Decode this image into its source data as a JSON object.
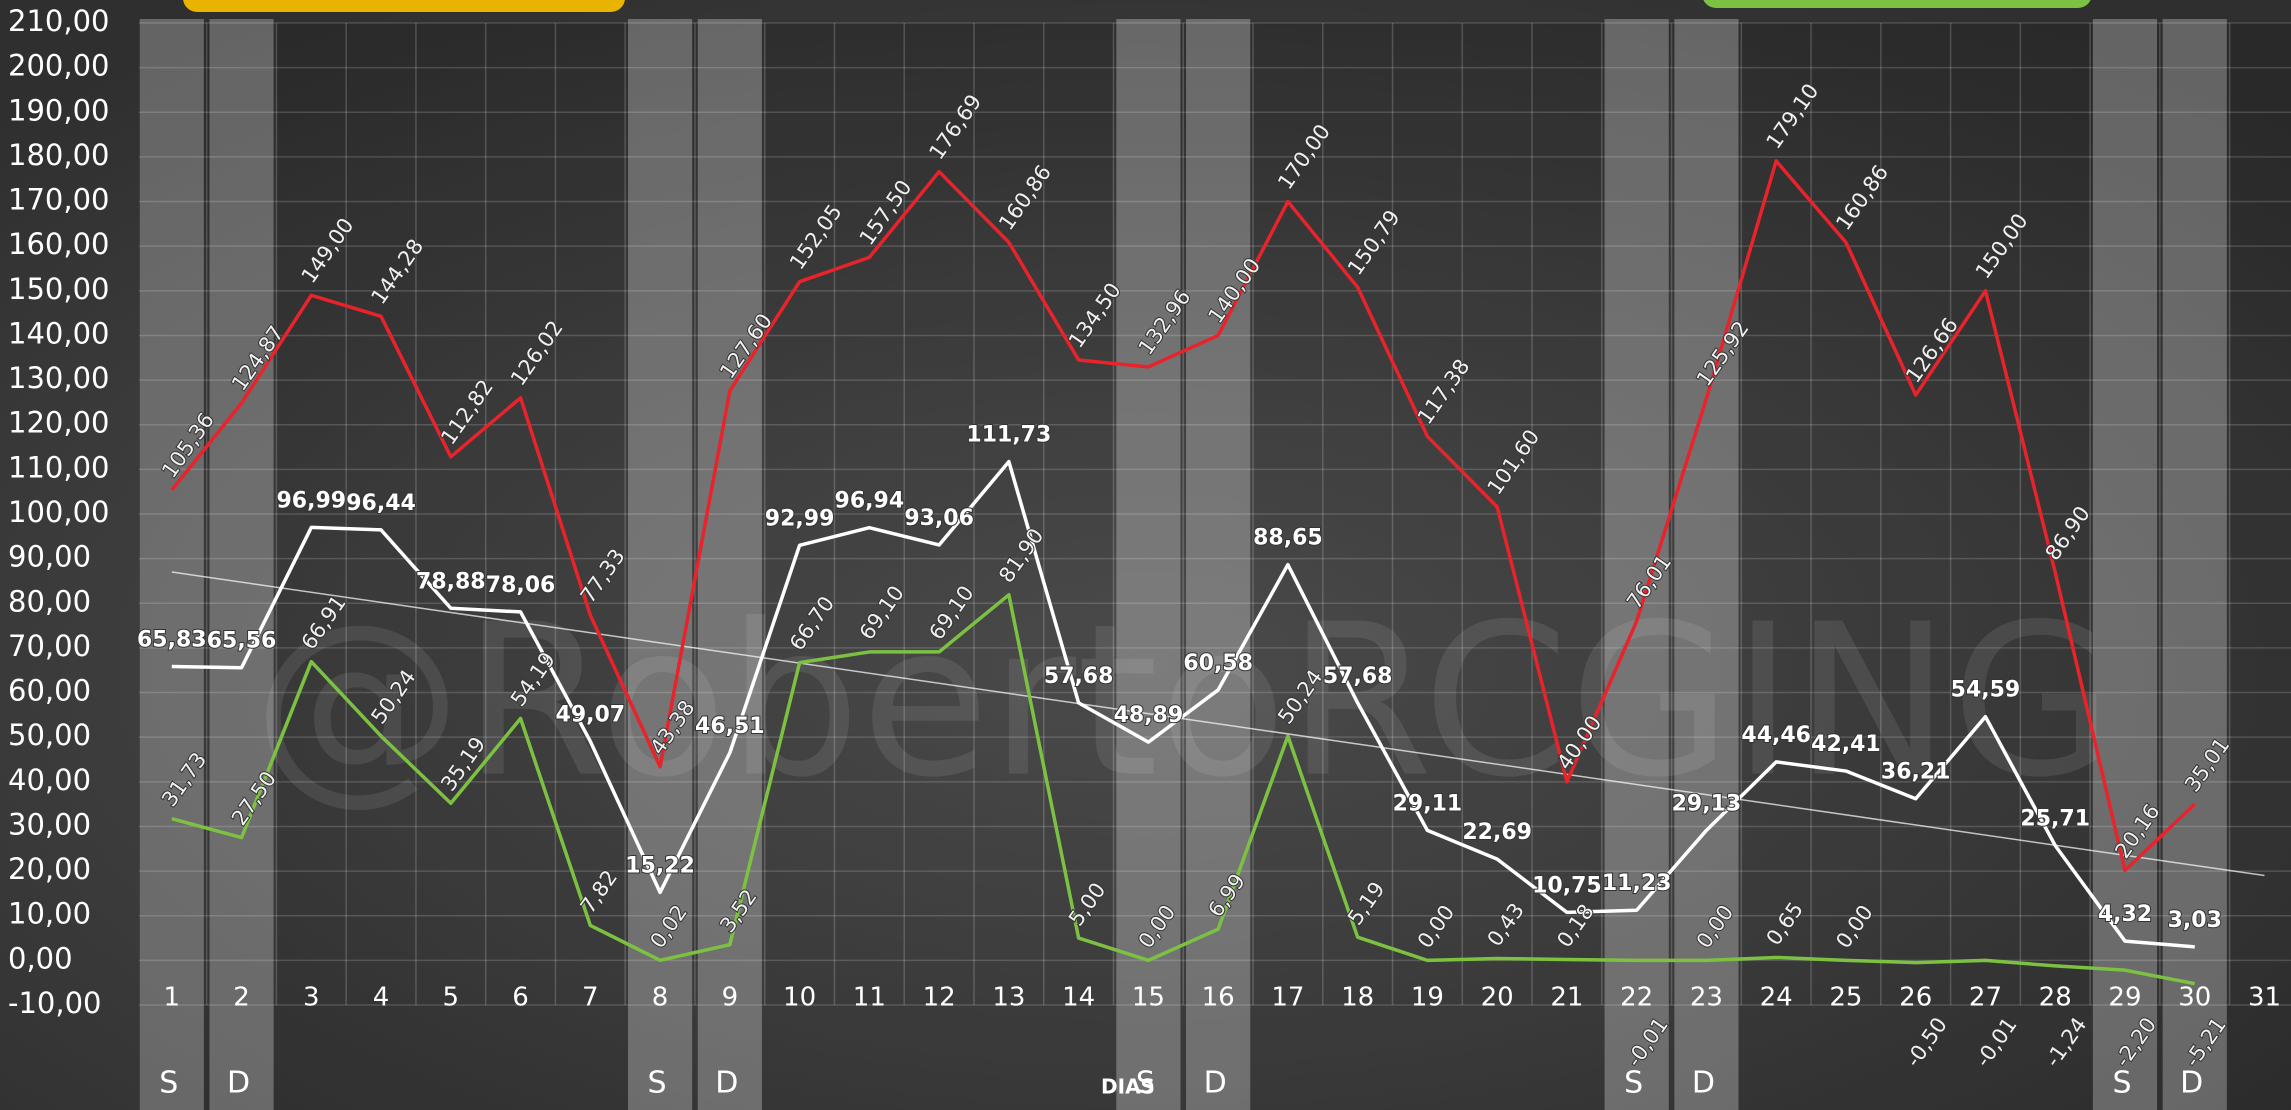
{
  "chart_data": {
    "type": "line",
    "watermark": "@RobertoRCGING",
    "xlabel": "DIAS",
    "x": [
      1,
      2,
      3,
      4,
      5,
      6,
      7,
      8,
      9,
      10,
      11,
      12,
      13,
      14,
      15,
      16,
      17,
      18,
      19,
      20,
      21,
      22,
      23,
      24,
      25,
      26,
      27,
      28,
      29,
      30,
      31
    ],
    "xlim": [
      0.53,
      31.38
    ],
    "ylim": [
      -10,
      210
    ],
    "yticks": [
      {
        "value": -10,
        "label": "-10,00"
      },
      {
        "value": 0,
        "label": "0,00"
      },
      {
        "value": 10,
        "label": "10,00"
      },
      {
        "value": 20,
        "label": "20,00"
      },
      {
        "value": 30,
        "label": "30,00"
      },
      {
        "value": 40,
        "label": "40,00"
      },
      {
        "value": 50,
        "label": "50,00"
      },
      {
        "value": 60,
        "label": "60,00"
      },
      {
        "value": 70,
        "label": "70,00"
      },
      {
        "value": 80,
        "label": "80,00"
      },
      {
        "value": 90,
        "label": "90,00"
      },
      {
        "value": 100,
        "label": "100,00"
      },
      {
        "value": 110,
        "label": "110,00"
      },
      {
        "value": 120,
        "label": "120,00"
      },
      {
        "value": 130,
        "label": "130,00"
      },
      {
        "value": 140,
        "label": "140,00"
      },
      {
        "value": 150,
        "label": "150,00"
      },
      {
        "value": 160,
        "label": "160,00"
      },
      {
        "value": 170,
        "label": "170,00"
      },
      {
        "value": 180,
        "label": "180,00"
      },
      {
        "value": 190,
        "label": "190,00"
      },
      {
        "value": 200,
        "label": "200,00"
      },
      {
        "value": 210,
        "label": "210,00"
      }
    ],
    "grid": true,
    "weekends": [
      {
        "day": 1,
        "label": "S"
      },
      {
        "day": 2,
        "label": "D"
      },
      {
        "day": 8,
        "label": "S"
      },
      {
        "day": 9,
        "label": "D"
      },
      {
        "day": 15,
        "label": "S"
      },
      {
        "day": 16,
        "label": "D"
      },
      {
        "day": 22,
        "label": "S"
      },
      {
        "day": 23,
        "label": "D"
      },
      {
        "day": 29,
        "label": "S"
      },
      {
        "day": 30,
        "label": "D"
      }
    ],
    "series": [
      {
        "color": "#e8232b",
        "label_style": "rotated",
        "values": [
          105.36,
          124.87,
          149.0,
          144.28,
          112.82,
          126.02,
          77.33,
          43.38,
          127.6,
          152.05,
          157.5,
          176.69,
          160.86,
          134.5,
          132.96,
          140.0,
          170.0,
          150.79,
          117.38,
          101.6,
          40.0,
          76.01,
          125.92,
          179.1,
          160.86,
          126.66,
          150.0,
          86.9,
          20.16,
          35.01,
          null
        ],
        "value_labels": [
          "105,36",
          "124,87",
          "149,00",
          "144,28",
          "112,82",
          "126,02",
          "77,33",
          "43,38",
          "127,60",
          "152,05",
          "157,50",
          "176,69",
          "160,86",
          "134,50",
          "132,96",
          "140,00",
          "170,00",
          "150,79",
          "117,38",
          "101,60",
          "40,00",
          "76,01",
          "125,92",
          "179,10",
          "160,86",
          "126,66",
          "150,00",
          "86,90",
          "20,16",
          "35,01",
          null
        ]
      },
      {
        "color": "#ffffff",
        "label_style": "bold",
        "values": [
          65.83,
          65.56,
          96.99,
          96.44,
          78.88,
          78.06,
          49.07,
          15.22,
          46.51,
          92.99,
          96.94,
          93.06,
          111.73,
          57.68,
          48.89,
          60.58,
          88.65,
          57.68,
          29.11,
          22.69,
          10.75,
          11.23,
          29.13,
          44.46,
          42.41,
          36.21,
          54.59,
          25.71,
          4.32,
          3.03,
          null
        ],
        "value_labels": [
          "65,83",
          "65,56",
          "96,99",
          "96,44",
          "78,88",
          "78,06",
          "49,07",
          "15,22",
          "46,51",
          "92,99",
          "96,94",
          "93,06",
          "111,73",
          "57,68",
          "48,89",
          "60,58",
          "88,65",
          "57,68",
          "29,11",
          "22,69",
          "10,75",
          "11,23",
          "29,13",
          "44,46",
          "42,41",
          "36,21",
          "54,59",
          "25,71",
          "4,32",
          "3,03",
          null
        ]
      },
      {
        "color": "#7cc142",
        "label_style": "rotated",
        "values": [
          31.73,
          27.5,
          66.91,
          50.24,
          35.19,
          54.19,
          7.82,
          0.02,
          3.52,
          66.7,
          69.1,
          69.1,
          81.9,
          5.0,
          0.0,
          6.99,
          50.24,
          5.19,
          0.0,
          0.43,
          0.18,
          -0.01,
          0.0,
          0.65,
          0.0,
          -0.5,
          -0.01,
          -1.24,
          -2.2,
          -5.21,
          null
        ],
        "value_labels": [
          "31,73",
          "27,50",
          "66,91",
          "50,24",
          "35,19",
          "54,19",
          "7,82",
          "0,02",
          "3,52",
          "66,70",
          "69,10",
          "69,10",
          "81,90",
          "5,00",
          "0,00",
          "6,99",
          "50,24",
          "5,19",
          "0,00",
          "0,43",
          "0,18",
          "-0,01",
          "0,00",
          "0,65",
          "0,00",
          "-0,50",
          "-0,01",
          "-1,24",
          "-2,20",
          "-5,21",
          null
        ]
      }
    ],
    "trendline": {
      "x": [
        1,
        31
      ],
      "values": [
        87,
        19
      ]
    }
  }
}
